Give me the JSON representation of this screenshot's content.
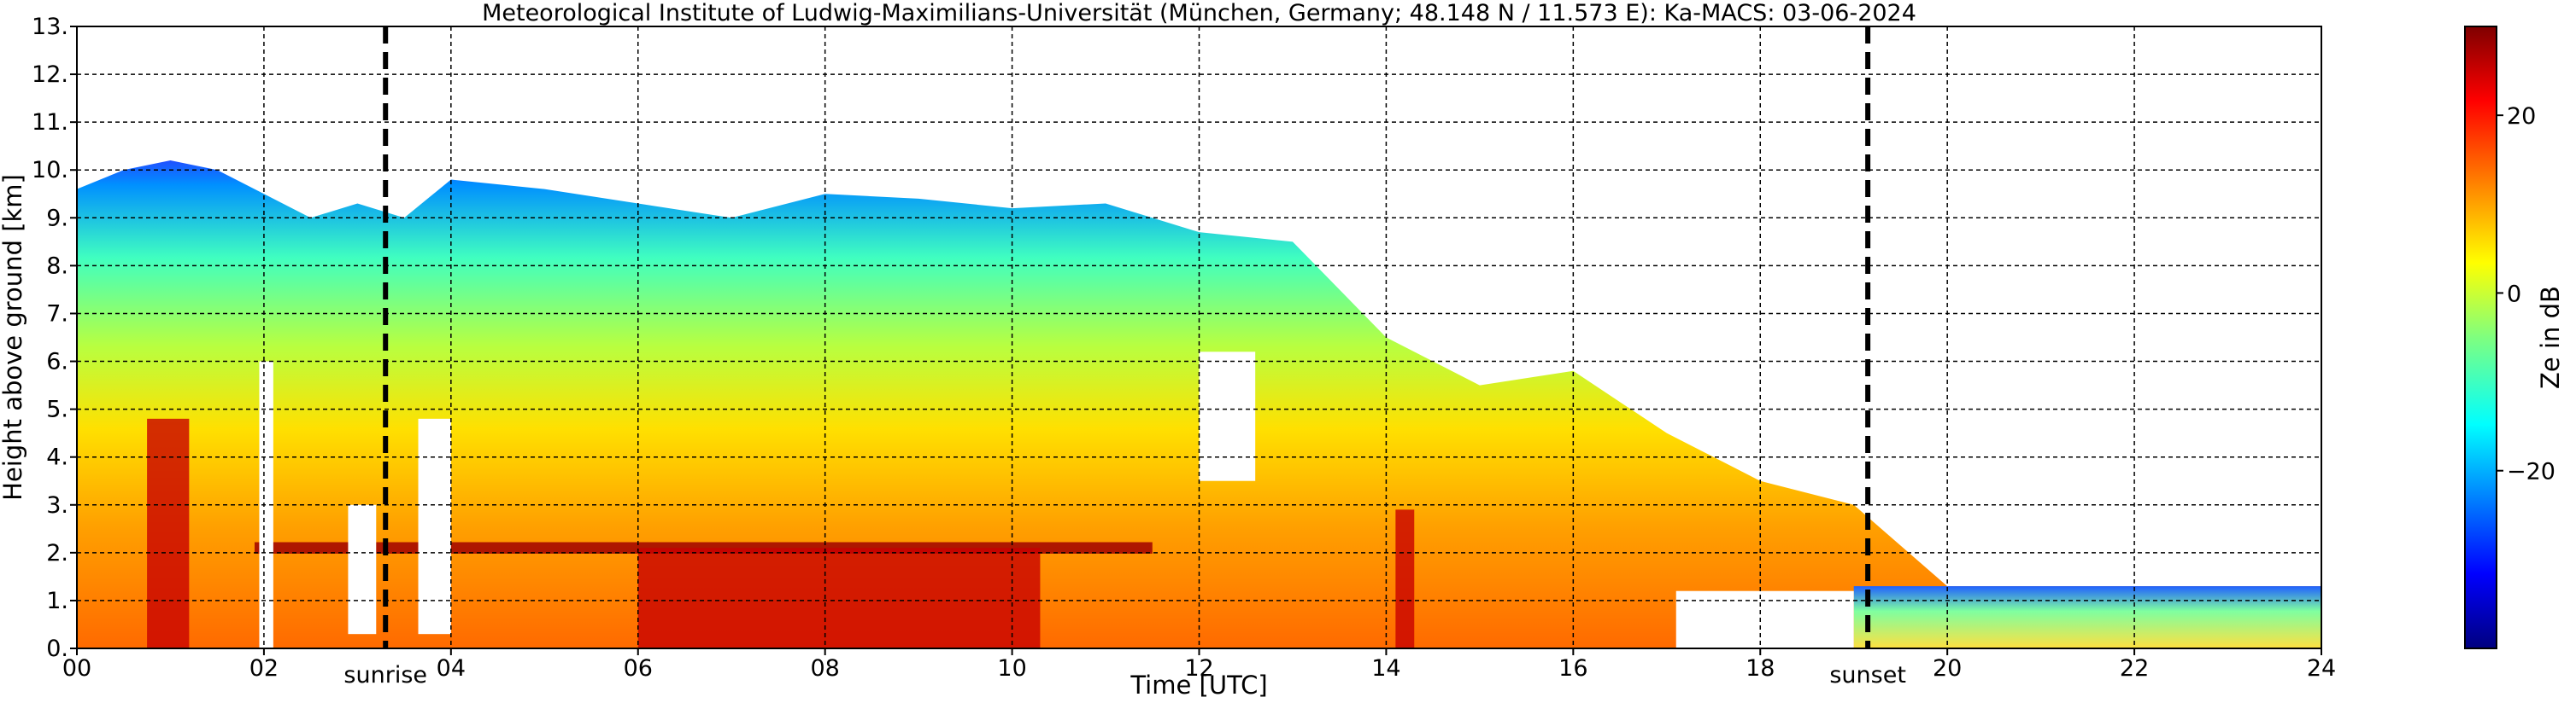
{
  "chart_data": {
    "type": "heatmap",
    "title": "Meteorological Institute of Ludwig-Maximilians-Universität (München, Germany; 48.148 N / 11.573 E):    Ka-MACS: 03-06-2024",
    "xlabel": "Time [UTC]",
    "ylabel": "Height above ground [km]",
    "xlim": [
      0,
      24
    ],
    "ylim": [
      0,
      13
    ],
    "x_tick_labels": [
      "00",
      "02",
      "04",
      "06",
      "08",
      "10",
      "12",
      "14",
      "16",
      "18",
      "20",
      "22",
      "24"
    ],
    "y_tick_labels": [
      "0.",
      "1.",
      "2.",
      "3.",
      "4.",
      "5.",
      "6.",
      "7.",
      "8.",
      "9.",
      "10.",
      "11.",
      "12.",
      "13."
    ],
    "grid": true,
    "colorbar": {
      "label": "Ze in dB",
      "range": [
        -40,
        30
      ],
      "tick_labels": [
        "20",
        "0",
        "−20"
      ],
      "colormap": "jet"
    },
    "vlines": [
      {
        "label": "sunrise",
        "x": 3.3
      },
      {
        "label": "sunset",
        "x": 19.15
      }
    ],
    "cloud_top_km": [
      [
        0,
        9.6
      ],
      [
        0.5,
        10.0
      ],
      [
        1.0,
        10.2
      ],
      [
        1.5,
        10.0
      ],
      [
        2.0,
        9.5
      ],
      [
        2.5,
        9.0
      ],
      [
        3.0,
        9.3
      ],
      [
        3.5,
        9.0
      ],
      [
        4.0,
        9.8
      ],
      [
        5.0,
        9.6
      ],
      [
        6.0,
        9.3
      ],
      [
        7.0,
        9.0
      ],
      [
        8.0,
        9.5
      ],
      [
        9.0,
        9.4
      ],
      [
        10.0,
        9.2
      ],
      [
        11.0,
        9.3
      ],
      [
        12.0,
        8.7
      ],
      [
        13.0,
        8.5
      ],
      [
        14.0,
        6.5
      ],
      [
        15.0,
        5.5
      ],
      [
        16.0,
        5.8
      ],
      [
        17.0,
        4.5
      ],
      [
        18.0,
        3.5
      ],
      [
        19.0,
        3.0
      ],
      [
        20.0,
        1.3
      ],
      [
        24.0,
        1.3
      ]
    ],
    "bright_band": {
      "height_km": 2.1,
      "from": 1.9,
      "to": 11.5
    },
    "intense_precip_hours": [
      {
        "from": 0.75,
        "to": 1.2,
        "top_km": 4.8
      },
      {
        "from": 6.0,
        "to": 10.3,
        "top_km": 2.1
      },
      {
        "from": 14.1,
        "to": 14.3,
        "top_km": 2.9
      }
    ]
  }
}
